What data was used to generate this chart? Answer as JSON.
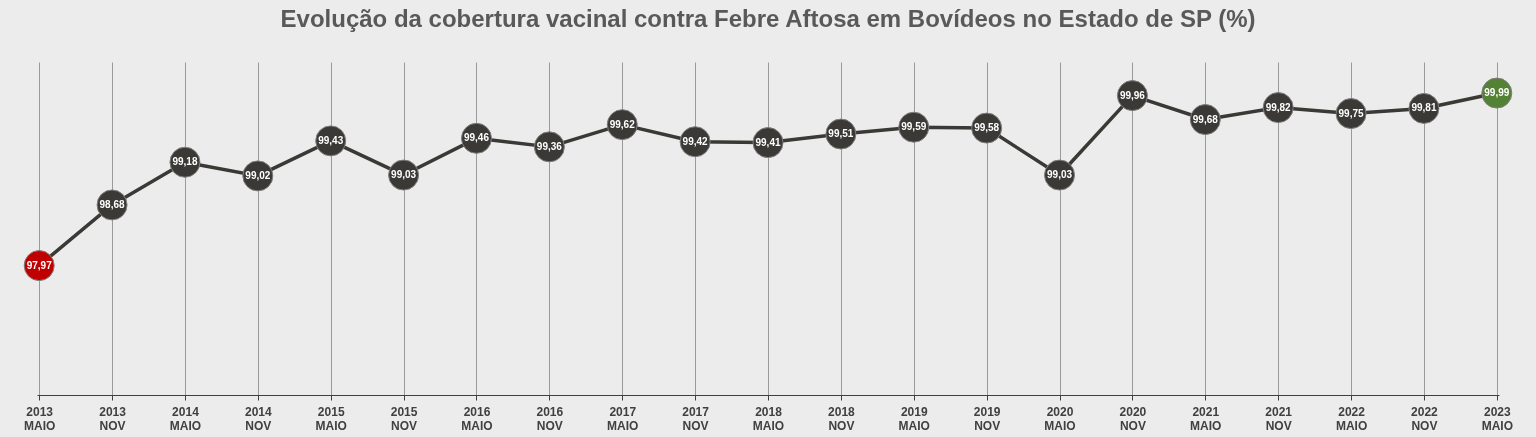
{
  "chart_data": {
    "type": "line",
    "title": "Evolução da cobertura vacinal contra Febre Aftosa em Bovídeos no Estado de SP  (%)",
    "categories": [
      "2013\nMAIO",
      "2013\nNOV",
      "2014\nMAIO",
      "2014\nNOV",
      "2015\nMAIO",
      "2015\nNOV",
      "2016\nMAIO",
      "2016\nNOV",
      "2017\nMAIO",
      "2017\nNOV",
      "2018\nMAIO",
      "2018\nNOV",
      "2019\nMAIO",
      "2019\nNOV",
      "2020\nMAIO",
      "2020\nNOV",
      "2021\nMAIO",
      "2021\nNOV",
      "2022\nMAIO",
      "2022\nNOV",
      "2023\nMAIO"
    ],
    "series": [
      {
        "color": "#3b3936",
        "values": [
          97.97,
          98.68,
          99.18,
          99.02,
          99.43,
          99.03,
          99.46,
          99.36,
          99.62,
          99.42,
          99.41,
          99.51,
          99.59,
          99.58,
          99.03,
          99.96,
          99.68,
          99.82,
          99.75,
          99.81,
          99.99
        ],
        "value_labels": [
          "97,97",
          "98,68",
          "99,18",
          "99,02",
          "99,43",
          "99,03",
          "99,46",
          "99,36",
          "99,62",
          "99,42",
          "99,41",
          "99,51",
          "99,59",
          "99,58",
          "99,03",
          "99,96",
          "99,68",
          "99,82",
          "99,75",
          "99,81",
          "99,99"
        ],
        "colors": [
          "#c00000",
          "#3b3936",
          "#3b3936",
          "#3b3936",
          "#3b3936",
          "#3b3936",
          "#3b3936",
          "#3b3936",
          "#3b3936",
          "#3b3936",
          "#3b3936",
          "#3b3936",
          "#3b3936",
          "#3b3936",
          "#3b3936",
          "#3b3936",
          "#3b3936",
          "#3b3936",
          "#3b3936",
          "#3b3936",
          "#548235"
        ]
      }
    ],
    "tick_labels": "x",
    "grid": "x",
    "marker": "circle",
    "line_style": "solid",
    "data_labels": true
  }
}
